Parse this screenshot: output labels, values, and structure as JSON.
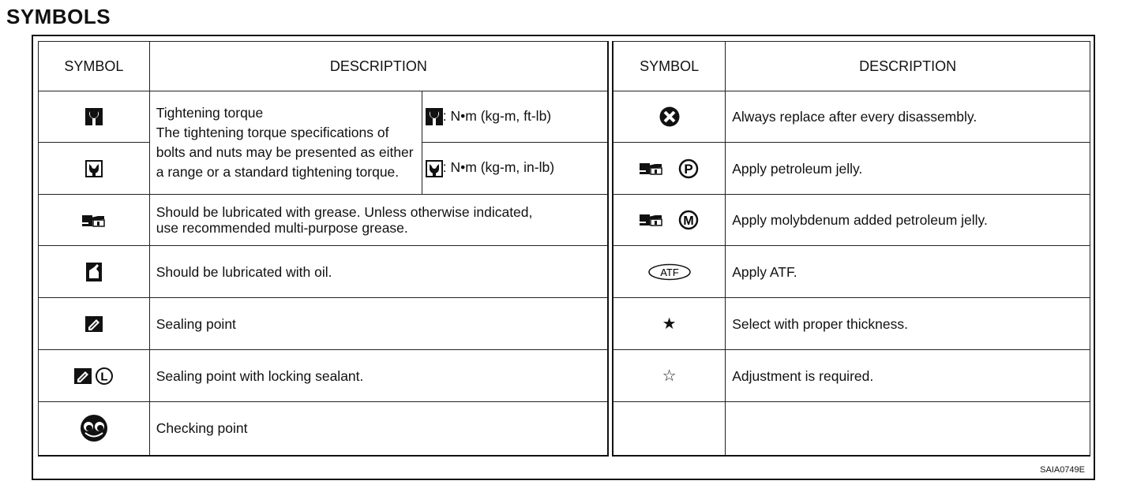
{
  "title": "SYMBOLS",
  "headers": {
    "symbol": "SYMBOL",
    "description": "DESCRIPTION"
  },
  "left_rows": [
    {
      "icon": "torque-wrench-icon",
      "description": "Tightening torque\nThe tightening torque specifications of bolts and nuts may be presented as either a range or a standard tightening torque.",
      "unit_1": ": N•m (kg-m, ft-lb)",
      "unit_2": ": N•m (kg-m, in-lb)"
    },
    {
      "icon": "torque-wrench-inlb-icon"
    },
    {
      "icon": "grease-gun-icon",
      "description": "Should be lubricated with grease. Unless otherwise indicated, use recommended multi-purpose grease."
    },
    {
      "icon": "oil-can-icon",
      "description": "Should be lubricated with oil."
    },
    {
      "icon": "sealant-icon",
      "description": "Sealing point"
    },
    {
      "icon": "sealant-locking-icon",
      "symbol_letter": "L",
      "description": "Sealing point with locking sealant."
    },
    {
      "icon": "checking-eyes-icon",
      "description": "Checking point"
    }
  ],
  "right_rows": [
    {
      "icon": "replace-x-icon",
      "description": "Always replace after every disassembly."
    },
    {
      "icon": "grease-petroleum-icon",
      "symbol_letter": "P",
      "description": "Apply petroleum jelly."
    },
    {
      "icon": "grease-molybdenum-icon",
      "symbol_letter": "M",
      "description": "Apply molybdenum added petroleum jelly."
    },
    {
      "icon": "atf-icon",
      "symbol_text": "ATF",
      "description": "Apply ATF."
    },
    {
      "icon": "star-filled-icon",
      "symbol_text": "★",
      "description": "Select with proper thickness."
    },
    {
      "icon": "star-outline-icon",
      "symbol_text": "☆",
      "description": "Adjustment is required."
    },
    {
      "icon": "",
      "description": ""
    }
  ],
  "figure_code": "SAIA0749E"
}
